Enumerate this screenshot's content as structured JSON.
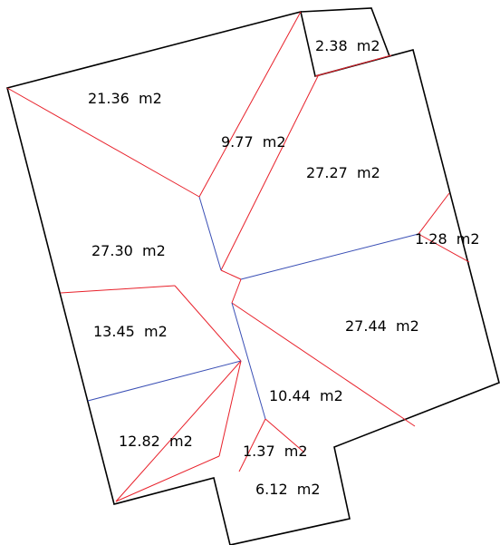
{
  "colors": {
    "background": "#ffffff",
    "outline": "#000000",
    "hip_line": "#e8202a",
    "valley_line": "#3a4fb5",
    "text": "#000000"
  },
  "areas": [
    {
      "id": "21-36",
      "label": "21.36  m2"
    },
    {
      "id": "2-38",
      "label": "2.38  m2"
    },
    {
      "id": "9-77",
      "label": "9.77  m2"
    },
    {
      "id": "27-27",
      "label": "27.27  m2"
    },
    {
      "id": "1-28",
      "label": "1.28  m2"
    },
    {
      "id": "27-30",
      "label": "27.30  m2"
    },
    {
      "id": "13-45",
      "label": "13.45  m2"
    },
    {
      "id": "27-44",
      "label": "27.44  m2"
    },
    {
      "id": "10-44",
      "label": "10.44  m2"
    },
    {
      "id": "12-82",
      "label": "12.82  m2"
    },
    {
      "id": "1-37",
      "label": "1.37  m2"
    },
    {
      "id": "6-12",
      "label": "6.12  m2"
    }
  ]
}
